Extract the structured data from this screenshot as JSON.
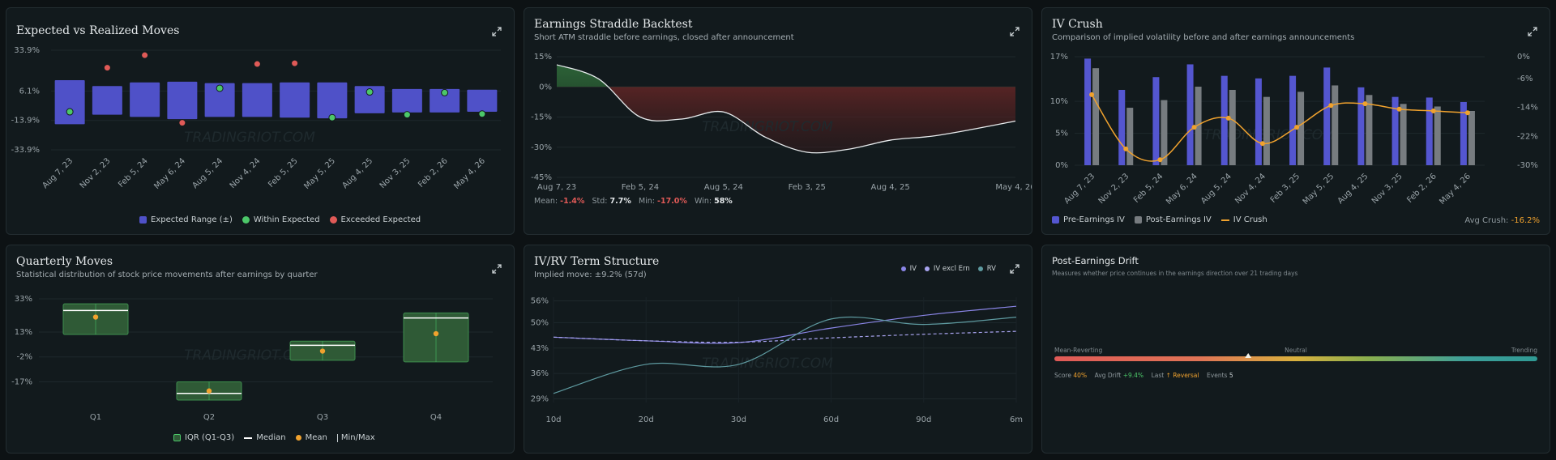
{
  "watermark": "TRADINGRIOT.COM",
  "colors": {
    "blue": "#4f51c8",
    "green": "#4cc769",
    "red": "#e05a57",
    "orange": "#f0a22e",
    "gray": "#777c80",
    "purple": "#8a85e6",
    "teal": "#5e9aa0",
    "area_green": "#2f5a36"
  },
  "panels": {
    "expected": {
      "title": "Expected vs Realized Moves",
      "legend": [
        "Expected Range (±)",
        "Within Expected",
        "Exceeded Expected"
      ]
    },
    "straddle": {
      "title": "Earnings Straddle Backtest",
      "subtitle": "Short ATM straddle before earnings, closed after announcement",
      "stats": {
        "mean_label": "Mean:",
        "mean": "-1.4%",
        "std_label": "Std:",
        "std": "7.7%",
        "min_label": "Min:",
        "min": "-17.0%",
        "win_label": "Win:",
        "win": "58%"
      }
    },
    "ivcrush": {
      "title": "IV Crush",
      "subtitle": "Comparison of implied volatility before and after earnings announcements",
      "legend": [
        "Pre-Earnings IV",
        "Post-Earnings IV",
        "IV Crush"
      ],
      "avg_label": "Avg Crush:",
      "avg_value": "-16.2%"
    },
    "quarterly": {
      "title": "Quarterly Moves",
      "subtitle": "Statistical distribution of stock price movements after earnings by quarter",
      "legend": [
        "IQR (Q1-Q3)",
        "Median",
        "Mean",
        "Min/Max"
      ]
    },
    "term": {
      "title": "IV/RV Term Structure",
      "subtitle": "Implied move: ±9.2% (57d)",
      "legend": [
        "IV",
        "IV excl Ern",
        "RV"
      ]
    },
    "drift": {
      "title": "Post-Earnings Drift",
      "subtitle": "Measures whether price continues in the earnings direction over 21 trading days",
      "scale_labels": [
        "Mean-Reverting",
        "Neutral",
        "Trending"
      ],
      "stats": {
        "score_label": "Score",
        "score": "40%",
        "avg_label": "Avg Drift",
        "avg": "+9.4%",
        "last_label": "Last",
        "last": "↑ Reversal",
        "events_label": "Events",
        "events": "5"
      }
    }
  },
  "chart_data": [
    {
      "id": "expected",
      "type": "bar",
      "title": "Expected vs Realized Moves",
      "categories": [
        "Aug 7, 23",
        "Nov 2, 23",
        "Feb 5, 24",
        "May 6, 24",
        "Aug 5, 24",
        "Nov 4, 24",
        "Feb 5, 25",
        "May 5, 25",
        "Aug 4, 25",
        "Nov 3, 25",
        "Feb 2, 26",
        "May 4, 26"
      ],
      "yticks": [
        "33.9%",
        "6.1%",
        "-13.9%",
        "-33.9%"
      ],
      "ylim": [
        -33.9,
        33.9
      ],
      "expected_upper": [
        13.5,
        9.5,
        12.0,
        12.5,
        11.5,
        11.5,
        12.0,
        12.0,
        9.5,
        7.5,
        7.5,
        7.0
      ],
      "expected_lower": [
        -16.5,
        -10.0,
        -11.5,
        -13.0,
        -11.5,
        -11.5,
        -12.0,
        -12.5,
        -9.0,
        -8.5,
        -8.5,
        -8.0
      ],
      "realized": [
        -8.0,
        22.0,
        30.5,
        -15.5,
        8.0,
        24.5,
        25.0,
        -12.0,
        5.5,
        -10.0,
        5.0,
        -9.5
      ],
      "exceeded": [
        false,
        true,
        true,
        true,
        false,
        true,
        true,
        false,
        false,
        false,
        false,
        false
      ],
      "legend": [
        "Expected Range (±)",
        "Within Expected",
        "Exceeded Expected"
      ]
    },
    {
      "id": "straddle",
      "type": "area",
      "title": "Earnings Straddle Backtest",
      "x": [
        "Aug 7, 23",
        "Nov 2, 23",
        "Feb 5, 24",
        "May 6, 24",
        "Aug 5, 24",
        "Nov 4, 24",
        "Feb 3, 25",
        "May 5, 25",
        "Aug 4, 25",
        "Nov 3, 25",
        "Feb 2, 26",
        "May 4, 26"
      ],
      "xticks": [
        "Aug 7, 23",
        "Feb 5, 24",
        "Aug 5, 24",
        "Feb 3, 25",
        "Aug 4, 25",
        "May 4, 26"
      ],
      "y": [
        11.0,
        4.0,
        -15.0,
        -16.0,
        -12.5,
        -25.0,
        -32.5,
        -31.0,
        -26.5,
        -24.5,
        -21.0,
        -17.0
      ],
      "yticks": [
        "15%",
        "0%",
        "-15%",
        "-30%",
        "-45%"
      ],
      "ylim": [
        -45,
        15
      ]
    },
    {
      "id": "ivcrush",
      "type": "bar",
      "title": "IV Crush",
      "categories": [
        "Aug 7, 23",
        "Nov 2, 23",
        "Feb 5, 24",
        "May 6, 24",
        "Aug 5, 24",
        "Nov 4, 24",
        "Feb 3, 25",
        "May 5, 25",
        "Aug 4, 25",
        "Nov 3, 25",
        "Feb 2, 26",
        "May 4, 26"
      ],
      "series": [
        {
          "name": "Pre-Earnings IV",
          "values": [
            16.7,
            11.8,
            13.8,
            15.8,
            14.0,
            13.6,
            14.0,
            15.3,
            12.2,
            10.7,
            10.6,
            9.9
          ]
        },
        {
          "name": "Post-Earnings IV",
          "values": [
            15.2,
            9.0,
            10.2,
            12.3,
            11.8,
            10.7,
            11.5,
            12.5,
            11.0,
            9.6,
            9.2,
            8.5
          ]
        },
        {
          "name": "IV Crush",
          "values": [
            -10.5,
            -25.5,
            -28.5,
            -19.5,
            -17.0,
            -24.0,
            -19.5,
            -13.5,
            -13.0,
            -14.5,
            -15.0,
            -15.5
          ]
        }
      ],
      "yticks_left": [
        "17%",
        "10%",
        "5%",
        "0%"
      ],
      "ylim_left": [
        0,
        17
      ],
      "yticks_right": [
        "0%",
        "-6%",
        "-14%",
        "-22%",
        "-30%"
      ],
      "ylim_right": [
        -30,
        0
      ]
    },
    {
      "id": "quarterly",
      "type": "box",
      "title": "Quarterly Moves",
      "categories": [
        "Q1",
        "Q2",
        "Q3",
        "Q4"
      ],
      "q1": [
        11.5,
        -28.0,
        -4.0,
        -5.0
      ],
      "q3": [
        30.0,
        -17.0,
        7.5,
        24.5
      ],
      "median": [
        26.0,
        -24.0,
        5.0,
        21.5
      ],
      "mean": [
        22.0,
        -22.5,
        1.5,
        12.0
      ],
      "min": [
        11.5,
        -28.0,
        -4.0,
        -5.0
      ],
      "max": [
        30.0,
        -17.0,
        7.5,
        24.5
      ],
      "yticks": [
        "33%",
        "13%",
        "-2%",
        "-17%"
      ],
      "ylim": [
        -28,
        33
      ],
      "legend": [
        "IQR (Q1-Q3)",
        "Median",
        "Mean",
        "Min/Max"
      ]
    },
    {
      "id": "term",
      "type": "line",
      "title": "IV/RV Term Structure",
      "x": [
        "10d",
        "20d",
        "30d",
        "60d",
        "90d",
        "6m"
      ],
      "series": [
        {
          "name": "IV",
          "values": [
            46.0,
            45.0,
            44.5,
            48.5,
            52.0,
            54.5
          ]
        },
        {
          "name": "IV excl Ern",
          "values": [
            46.0,
            45.0,
            44.6,
            45.8,
            46.8,
            47.6
          ]
        },
        {
          "name": "RV",
          "values": [
            30.5,
            38.5,
            38.5,
            51.0,
            49.5,
            51.5
          ]
        }
      ],
      "yticks": [
        "56%",
        "50%",
        "43%",
        "36%",
        "29%"
      ],
      "ylim": [
        28,
        57
      ]
    },
    {
      "id": "drift",
      "type": "gauge",
      "title": "Post-Earnings Drift",
      "score": 0.4
    }
  ]
}
